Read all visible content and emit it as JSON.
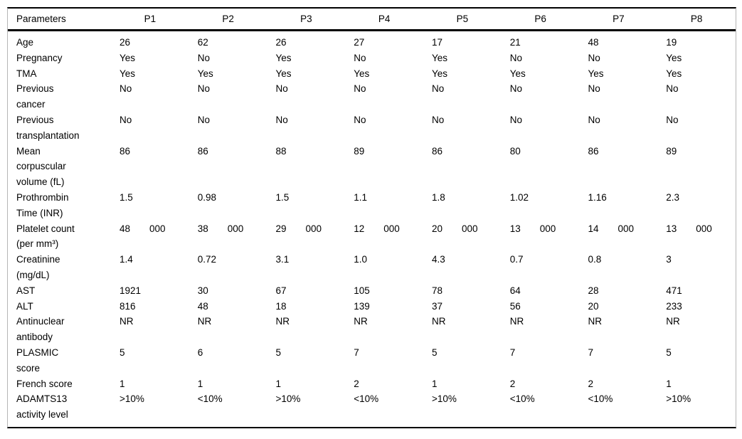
{
  "table": {
    "columns": [
      "Parameters",
      "P1",
      "P2",
      "P3",
      "P4",
      "P5",
      "P6",
      "P7",
      "P8"
    ],
    "rows": [
      {
        "param": "Age",
        "values": [
          "26",
          "62",
          "26",
          "27",
          "17",
          "21",
          "48",
          "19"
        ]
      },
      {
        "param": "Pregnancy",
        "values": [
          "Yes",
          "No",
          "Yes",
          "No",
          "Yes",
          "No",
          "No",
          "Yes"
        ]
      },
      {
        "param": "TMA",
        "values": [
          "Yes",
          "Yes",
          "Yes",
          "Yes",
          "Yes",
          "Yes",
          "Yes",
          "Yes"
        ]
      },
      {
        "param": "Previous\ncancer",
        "values": [
          "No",
          "No",
          "No",
          "No",
          "No",
          "No",
          "No",
          "No"
        ]
      },
      {
        "param": "Previous\ntransplantation",
        "values": [
          "No",
          "No",
          "No",
          "No",
          "No",
          "No",
          "No",
          "No"
        ]
      },
      {
        "param": "Mean\ncorpuscular\nvolume (fL)",
        "values": [
          "86",
          "86",
          "88",
          "89",
          "86",
          "80",
          "86",
          "89"
        ]
      },
      {
        "param": "Prothrombin\nTime (INR)",
        "values": [
          "1.5",
          "0.98",
          "1.5",
          "1.1",
          "1.8",
          "1.02",
          "1.16",
          "2.3"
        ]
      },
      {
        "param": "Platelet count\n(per mm³)",
        "values": [
          "48  000",
          "38  000",
          "29  000",
          "12  000",
          "20  000",
          "13  000",
          "14  000",
          "13  000"
        ]
      },
      {
        "param": "Creatinine\n(mg/dL)",
        "values": [
          "1.4",
          "0.72",
          "3.1",
          "1.0",
          "4.3",
          "0.7",
          "0.8",
          "3"
        ]
      },
      {
        "param": "AST",
        "values": [
          "1921",
          "30",
          "67",
          "105",
          "78",
          "64",
          "28",
          "471"
        ]
      },
      {
        "param": "ALT",
        "values": [
          "816",
          "48",
          "18",
          "139",
          "37",
          "56",
          "20",
          "233"
        ]
      },
      {
        "param": "Antinuclear\nantibody",
        "values": [
          "NR",
          "NR",
          "NR",
          "NR",
          "NR",
          "NR",
          "NR",
          "NR"
        ]
      },
      {
        "param": "PLASMIC\nscore",
        "values": [
          "5",
          "6",
          "5",
          "7",
          "5",
          "7",
          "7",
          "5"
        ]
      },
      {
        "param": "French score",
        "values": [
          "1",
          "1",
          "1",
          "2",
          "1",
          "2",
          "2",
          "1"
        ]
      },
      {
        "param": "ADAMTS13\nactivity level",
        "values": [
          ">10%",
          "<10%",
          ">10%",
          "<10%",
          ">10%",
          "<10%",
          "<10%",
          ">10%"
        ]
      }
    ]
  }
}
